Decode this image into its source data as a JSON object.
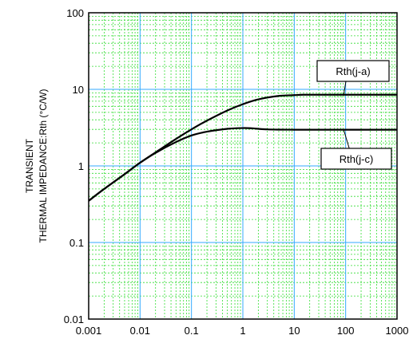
{
  "chart_data": {
    "type": "line",
    "title": "",
    "xlabel": "",
    "ylabel_lines": [
      "TRANSIENT",
      "THERMAL IMPEDANCE:Rth (°C/W)"
    ],
    "x_scale": "log",
    "y_scale": "log",
    "xlim": [
      0.001,
      1000
    ],
    "ylim": [
      0.01,
      100
    ],
    "x_ticks": [
      {
        "value": 0.001,
        "label": "0.001"
      },
      {
        "value": 0.01,
        "label": "0.01"
      },
      {
        "value": 0.1,
        "label": "0.1"
      },
      {
        "value": 1,
        "label": "1"
      },
      {
        "value": 10,
        "label": "10"
      },
      {
        "value": 100,
        "label": "100"
      },
      {
        "value": 1000,
        "label": "1000"
      }
    ],
    "y_ticks": [
      {
        "value": 0.01,
        "label": "0.01"
      },
      {
        "value": 0.1,
        "label": "0.1"
      },
      {
        "value": 1,
        "label": "1"
      },
      {
        "value": 10,
        "label": "10"
      },
      {
        "value": 100,
        "label": "100"
      }
    ],
    "grid": true,
    "colors": {
      "major_grid": "#33aaff",
      "minor_grid": "#33dd33",
      "curve": "#000000",
      "frame": "#000000"
    },
    "series": [
      {
        "name": "Rth(j-a)",
        "x": [
          0.001,
          0.002,
          0.005,
          0.01,
          0.02,
          0.05,
          0.1,
          0.2,
          0.5,
          1,
          2,
          5,
          10,
          15,
          20,
          30,
          50,
          100,
          200,
          500,
          1000
        ],
        "y": [
          0.35,
          0.5,
          0.78,
          1.1,
          1.5,
          2.25,
          3.0,
          3.9,
          5.3,
          6.4,
          7.4,
          8.2,
          8.4,
          8.5,
          8.5,
          8.5,
          8.5,
          8.5,
          8.5,
          8.5,
          8.5
        ]
      },
      {
        "name": "Rth(j-c)",
        "x": [
          0.001,
          0.002,
          0.005,
          0.01,
          0.02,
          0.05,
          0.1,
          0.2,
          0.5,
          1,
          1.5,
          2,
          3,
          5,
          10,
          20,
          50,
          100,
          200,
          500,
          1000
        ],
        "y": [
          0.35,
          0.5,
          0.78,
          1.1,
          1.48,
          2.05,
          2.5,
          2.8,
          3.05,
          3.12,
          3.1,
          3.05,
          3.0,
          2.98,
          2.97,
          2.97,
          2.97,
          2.97,
          2.97,
          2.97,
          2.97
        ]
      }
    ],
    "annotations": [
      {
        "text": "Rth(j-a)",
        "target_series": "Rth(j-a)"
      },
      {
        "text": "Rth(j-c)",
        "target_series": "Rth(j-c)"
      }
    ]
  }
}
